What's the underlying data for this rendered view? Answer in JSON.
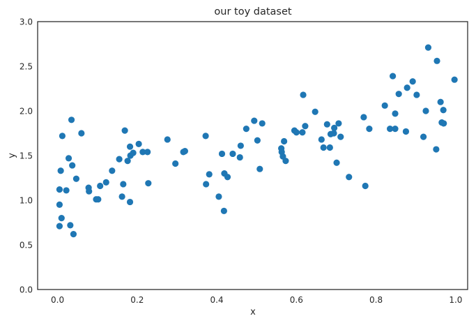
{
  "chart_data": {
    "type": "scatter",
    "title": "our toy dataset",
    "xlabel": "x",
    "ylabel": "y",
    "xlim": [
      -0.05,
      1.03
    ],
    "ylim": [
      0.0,
      3.0
    ],
    "xticks": [
      "0.0",
      "0.2",
      "0.4",
      "0.6",
      "0.8",
      "1.0"
    ],
    "yticks": [
      "0.0",
      "0.5",
      "1.0",
      "1.5",
      "2.0",
      "2.5",
      "3.0"
    ],
    "grid": false,
    "marker_color": "#1f77b4",
    "points": [
      [
        0.005,
        1.12
      ],
      [
        0.005,
        0.95
      ],
      [
        0.005,
        0.71
      ],
      [
        0.008,
        1.33
      ],
      [
        0.01,
        0.8
      ],
      [
        0.012,
        1.72
      ],
      [
        0.022,
        1.11
      ],
      [
        0.028,
        1.47
      ],
      [
        0.032,
        0.72
      ],
      [
        0.035,
        1.9
      ],
      [
        0.037,
        1.39
      ],
      [
        0.04,
        0.62
      ],
      [
        0.047,
        1.24
      ],
      [
        0.06,
        1.75
      ],
      [
        0.078,
        1.14
      ],
      [
        0.079,
        1.1
      ],
      [
        0.097,
        1.01
      ],
      [
        0.102,
        1.01
      ],
      [
        0.107,
        1.16
      ],
      [
        0.122,
        1.2
      ],
      [
        0.137,
        1.33
      ],
      [
        0.155,
        1.46
      ],
      [
        0.162,
        1.04
      ],
      [
        0.165,
        1.18
      ],
      [
        0.169,
        1.78
      ],
      [
        0.176,
        1.44
      ],
      [
        0.182,
        1.6
      ],
      [
        0.182,
        0.98
      ],
      [
        0.183,
        1.5
      ],
      [
        0.19,
        1.53
      ],
      [
        0.204,
        1.63
      ],
      [
        0.214,
        1.54
      ],
      [
        0.226,
        1.54
      ],
      [
        0.228,
        1.19
      ],
      [
        0.276,
        1.68
      ],
      [
        0.296,
        1.41
      ],
      [
        0.316,
        1.54
      ],
      [
        0.32,
        1.55
      ],
      [
        0.372,
        1.72
      ],
      [
        0.373,
        1.18
      ],
      [
        0.381,
        1.29
      ],
      [
        0.405,
        1.04
      ],
      [
        0.413,
        1.52
      ],
      [
        0.418,
        0.88
      ],
      [
        0.419,
        1.3
      ],
      [
        0.427,
        1.26
      ],
      [
        0.44,
        1.52
      ],
      [
        0.458,
        1.48
      ],
      [
        0.46,
        1.61
      ],
      [
        0.474,
        1.8
      ],
      [
        0.494,
        1.89
      ],
      [
        0.502,
        1.67
      ],
      [
        0.508,
        1.35
      ],
      [
        0.514,
        1.86
      ],
      [
        0.562,
        1.58
      ],
      [
        0.563,
        1.54
      ],
      [
        0.566,
        1.49
      ],
      [
        0.569,
        1.66
      ],
      [
        0.573,
        1.44
      ],
      [
        0.595,
        1.78
      ],
      [
        0.6,
        1.76
      ],
      [
        0.615,
        1.76
      ],
      [
        0.617,
        2.18
      ],
      [
        0.622,
        1.83
      ],
      [
        0.647,
        1.99
      ],
      [
        0.663,
        1.68
      ],
      [
        0.668,
        1.59
      ],
      [
        0.677,
        1.85
      ],
      [
        0.684,
        1.59
      ],
      [
        0.686,
        1.74
      ],
      [
        0.694,
        1.75
      ],
      [
        0.695,
        1.81
      ],
      [
        0.701,
        1.42
      ],
      [
        0.706,
        1.86
      ],
      [
        0.711,
        1.71
      ],
      [
        0.732,
        1.26
      ],
      [
        0.769,
        1.93
      ],
      [
        0.773,
        1.16
      ],
      [
        0.783,
        1.8
      ],
      [
        0.822,
        2.06
      ],
      [
        0.835,
        1.8
      ],
      [
        0.842,
        2.39
      ],
      [
        0.848,
        1.8
      ],
      [
        0.848,
        1.97
      ],
      [
        0.857,
        2.19
      ],
      [
        0.875,
        1.77
      ],
      [
        0.878,
        2.26
      ],
      [
        0.892,
        2.33
      ],
      [
        0.902,
        2.18
      ],
      [
        0.919,
        1.71
      ],
      [
        0.925,
        2.0
      ],
      [
        0.931,
        2.71
      ],
      [
        0.951,
        1.57
      ],
      [
        0.953,
        2.56
      ],
      [
        0.962,
        2.1
      ],
      [
        0.965,
        1.87
      ],
      [
        0.969,
        2.01
      ],
      [
        0.97,
        1.86
      ],
      [
        0.997,
        2.35
      ]
    ]
  }
}
